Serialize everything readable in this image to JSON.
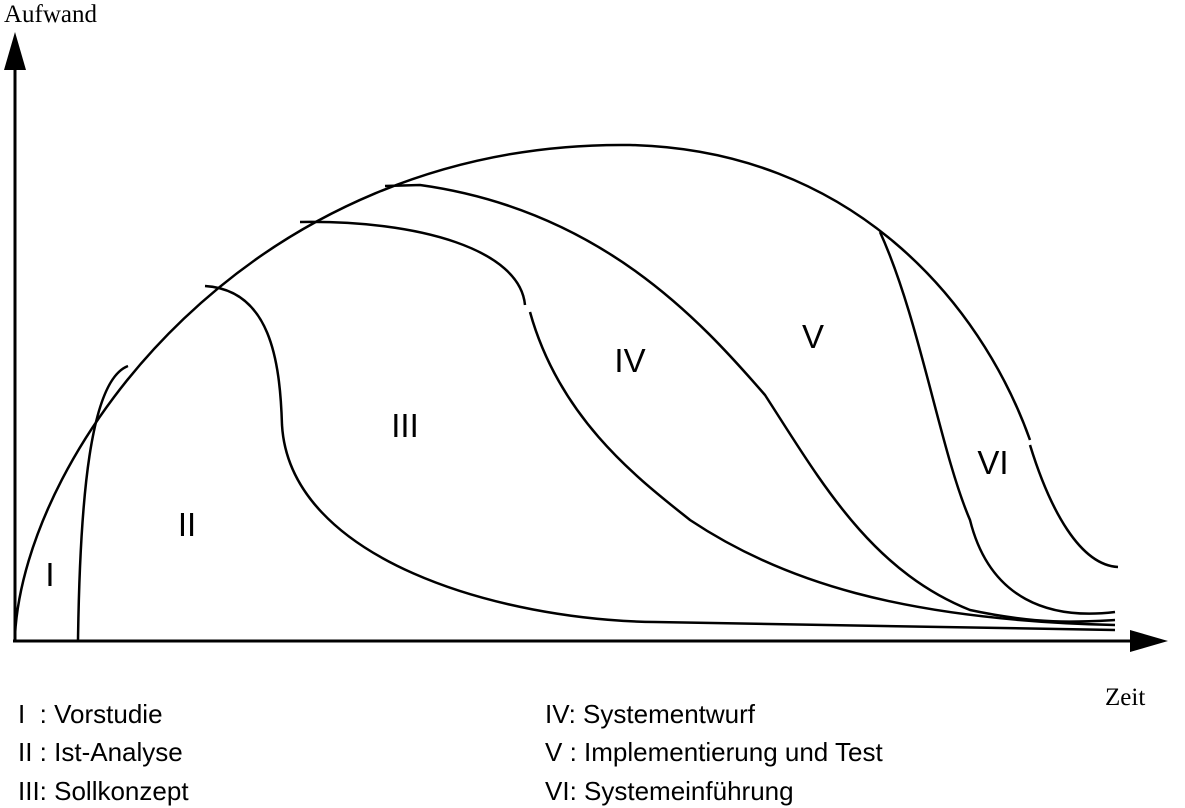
{
  "axes": {
    "y_label": "Aufwand",
    "x_label": "Zeit"
  },
  "regions": [
    "I",
    "II",
    "III",
    "IV",
    "V",
    "VI"
  ],
  "legend": [
    "I  : Vorstudie",
    "II : Ist-Analyse",
    "III: Sollkonzept",
    "IV: Systementwurf",
    "V : Implementierung und Test",
    "VI: Systemeinführung"
  ]
}
